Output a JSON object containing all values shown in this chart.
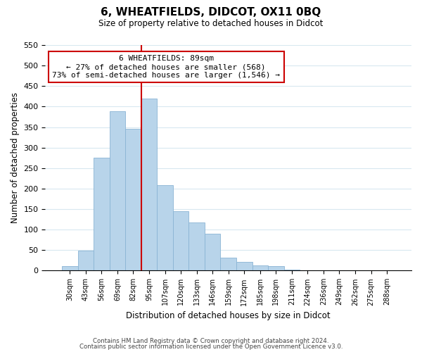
{
  "title": "6, WHEATFIELDS, DIDCOT, OX11 0BQ",
  "subtitle": "Size of property relative to detached houses in Didcot",
  "xlabel": "Distribution of detached houses by size in Didcot",
  "ylabel": "Number of detached properties",
  "bar_color": "#b8d4ea",
  "bar_edge_color": "#8ab4d4",
  "categories": [
    "30sqm",
    "43sqm",
    "56sqm",
    "69sqm",
    "82sqm",
    "95sqm",
    "107sqm",
    "120sqm",
    "133sqm",
    "146sqm",
    "159sqm",
    "172sqm",
    "185sqm",
    "198sqm",
    "211sqm",
    "224sqm",
    "236sqm",
    "249sqm",
    "262sqm",
    "275sqm",
    "288sqm"
  ],
  "values": [
    11,
    48,
    275,
    388,
    345,
    420,
    208,
    145,
    118,
    90,
    31,
    22,
    12,
    11,
    3,
    0,
    0,
    0,
    0,
    0,
    0
  ],
  "ylim": [
    0,
    550
  ],
  "yticks": [
    0,
    50,
    100,
    150,
    200,
    250,
    300,
    350,
    400,
    450,
    500,
    550
  ],
  "vline_x": 4.5,
  "vline_color": "#cc0000",
  "annotation_title": "6 WHEATFIELDS: 89sqm",
  "annotation_line1": "← 27% of detached houses are smaller (568)",
  "annotation_line2": "73% of semi-detached houses are larger (1,546) →",
  "annotation_box_color": "#ffffff",
  "annotation_box_edge": "#cc0000",
  "footer1": "Contains HM Land Registry data © Crown copyright and database right 2024.",
  "footer2": "Contains public sector information licensed under the Open Government Licence v3.0.",
  "background_color": "#ffffff",
  "grid_color": "#d8e8f0"
}
